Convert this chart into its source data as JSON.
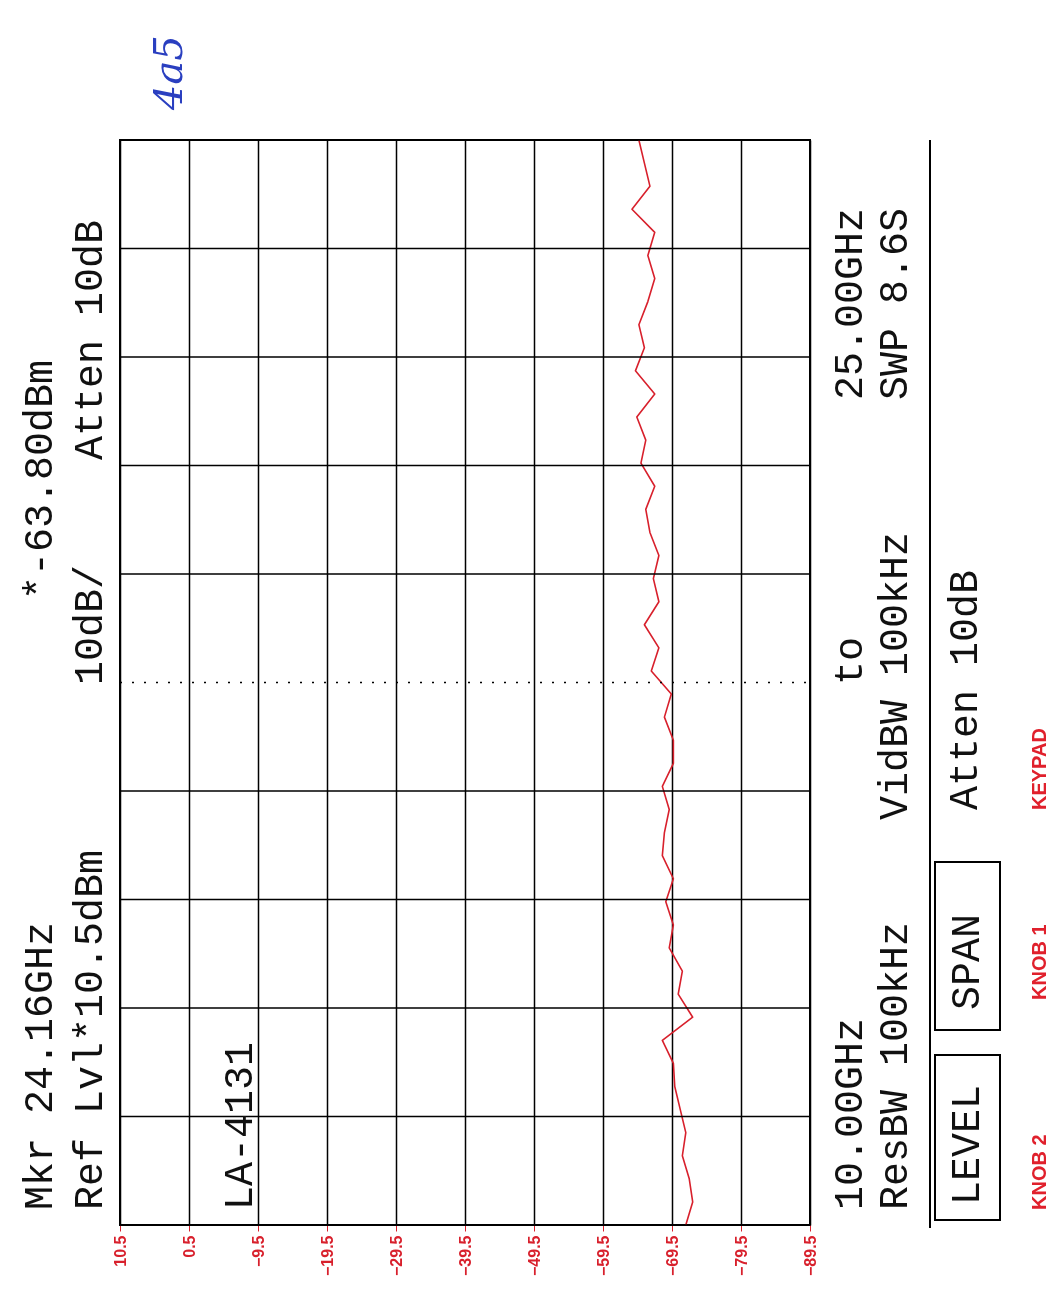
{
  "chart_data": {
    "type": "line",
    "orientation": "horizontal",
    "relative": false,
    "categories": [
      null,
      null,
      null,
      null,
      null,
      null,
      null,
      null,
      null,
      null,
      null,
      null,
      null,
      null,
      null,
      null,
      null,
      null,
      null,
      null,
      null,
      null,
      null,
      null,
      null,
      null,
      null,
      null,
      null,
      null,
      null,
      null,
      null,
      null,
      null,
      null,
      null,
      null,
      null,
      null,
      null,
      null,
      null,
      null,
      null,
      null,
      null,
      null
    ],
    "series": [
      {
        "color": "#d8202c",
        "values": [
          -64.7,
          -65.5,
          -66.3,
          -63.7,
          -67.0,
          -66.0,
          -67.0,
          -66.0,
          -64.7,
          -65.5,
          -64.2,
          -67.0,
          -64.4,
          -65.7,
          -65.0,
          -67.0,
          -65.7,
          -66.3,
          -67.6,
          -66.8,
          -67.6,
          -65.5,
          -67.6,
          -66.5,
          -69.4,
          -68.4,
          -69.7,
          -69.7,
          -68.1,
          -69.1,
          -68.4,
          -68.1,
          -69.7,
          -68.6,
          -69.7,
          -69.1,
          -71.0,
          -70.4,
          -72.5,
          -68.1,
          -69.7,
          -69.9,
          -70.7,
          -71.5,
          -71.0,
          -72.0,
          -72.5,
          -71.5
        ]
      }
    ],
    "xlim": [
      10.5,
      -89.5
    ],
    "xticks": [
      10.5,
      0.5,
      -9.5,
      -19.5,
      -29.5,
      -39.5,
      -49.5,
      -59.5,
      -69.5,
      -79.5,
      -89.5
    ],
    "grid": true,
    "annotations": [
      "Mkr  24.16GHz",
      "*-63.80dBm",
      "Ref Lvl*10.5dBm",
      "10dB/",
      "Atten 10dB",
      "LA-4131",
      "10.00GHz",
      "to",
      "25.00GHz",
      "ResBW 100kHz",
      "VidBW 100kHz",
      "SWP 8.6S",
      "Atten 10dB",
      "LEVEL",
      "SPAN",
      "KNOB 2",
      "KNOB 1",
      "KEYPAD",
      "4a5"
    ]
  }
}
